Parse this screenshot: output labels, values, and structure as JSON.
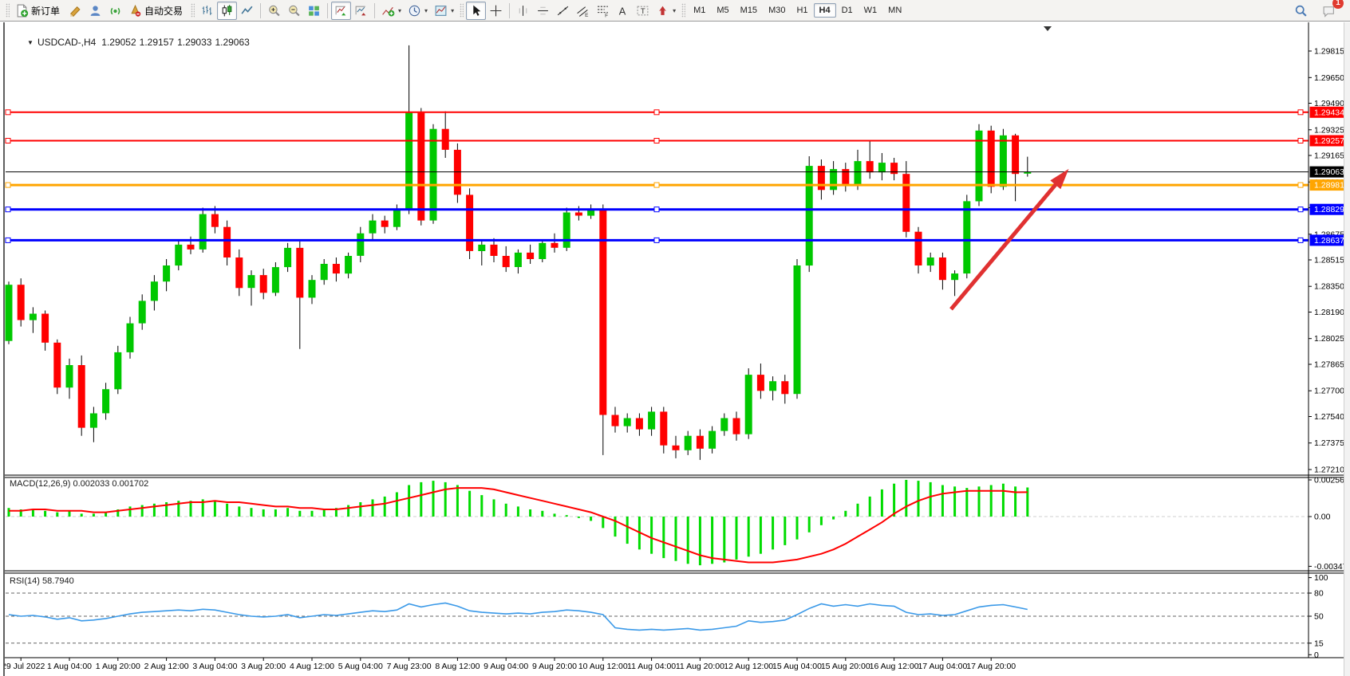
{
  "toolbar": {
    "new_order_label": "新订单",
    "auto_trading_label": "自动交易",
    "timeframes": [
      "M1",
      "M5",
      "M15",
      "M30",
      "H1",
      "H4",
      "D1",
      "W1",
      "MN"
    ],
    "active_timeframe": "H4",
    "notification_count": "1",
    "icons": [
      "new-order-icon",
      "mql5-crayon-icon",
      "virtual-hosting-icon",
      "signals-icon",
      "auto-trading-icon",
      "ohlc-bars-icon",
      "candlestick-icon",
      "line-chart-icon",
      "zoom-in-icon",
      "zoom-out-icon",
      "tile-windows-icon",
      "auto-scroll-icon",
      "chart-shift-icon",
      "indicators-icon",
      "periods-icon",
      "templates-icon",
      "cursor-icon",
      "crosshair-icon",
      "vertical-line-icon",
      "horizontal-line-icon",
      "trendline-icon",
      "equidistant-channel-icon",
      "fibonacci-icon",
      "text-icon",
      "text-label-icon",
      "arrows-icon",
      "search-icon",
      "chat-icon"
    ]
  },
  "chart": {
    "title_marker": "▼",
    "symbol_period": "USDCAD-,H4",
    "open": "1.29052",
    "high": "1.29157",
    "low": "1.29033",
    "close": "1.29063"
  },
  "indicators": {
    "macd_label": "MACD(12,26,9) 0.002033 0.001702",
    "rsi_label": "RSI(14) 58.7940"
  },
  "colors": {
    "candle_up": "#00C800",
    "candle_down": "#FF0000",
    "wick": "#000000",
    "macd_bar": "#00DC00",
    "macd_signal": "#FF0000",
    "rsi_line": "#3A99E8",
    "arrow": "#E03131",
    "level_red": "#FF0000",
    "level_orange": "#FFA500",
    "level_blue": "#0000FF",
    "bid_line": "#000000"
  },
  "chart_data": [
    {
      "type": "candlestick",
      "symbol": "USDCAD-",
      "timeframe": "H4",
      "ylim": [
        1.2721,
        1.29815
      ],
      "price_ticks": [
        "1.29815",
        "1.29650",
        "1.29490",
        "1.29325",
        "1.29165",
        "1.29000",
        "1.28840",
        "1.28675",
        "1.28515",
        "1.28350",
        "1.28190",
        "1.28025",
        "1.27865",
        "1.27700",
        "1.27540",
        "1.27375",
        "1.27210"
      ],
      "axis_badges": [
        {
          "label": "1.29434",
          "color": "#FF0000"
        },
        {
          "label": "1.29257",
          "color": "#FF0000"
        },
        {
          "label": "1.28981",
          "color": "#FFA500"
        },
        {
          "label": "1.28829",
          "color": "#0000FF"
        },
        {
          "label": "1.28637",
          "color": "#0000FF"
        },
        {
          "label": "1.29063",
          "color": "#000000"
        }
      ],
      "horizontal_lines": [
        {
          "price": 1.29434,
          "color": "#FF0000",
          "width": 2,
          "selected": true
        },
        {
          "price": 1.29257,
          "color": "#FF0000",
          "width": 2,
          "selected": true
        },
        {
          "price": 1.29063,
          "color": "#000000",
          "width": 1,
          "selected": false
        },
        {
          "price": 1.28981,
          "color": "#FFA500",
          "width": 3,
          "selected": true
        },
        {
          "price": 1.28829,
          "color": "#0000FF",
          "width": 3,
          "selected": true
        },
        {
          "price": 1.28637,
          "color": "#0000FF",
          "width": 3,
          "selected": true
        }
      ],
      "arrow_annotation": {
        "from": {
          "candle": 77.7,
          "price": 1.28208
        },
        "to": {
          "candle": 87.4,
          "price": 1.29081
        },
        "color": "#E03131"
      },
      "time_labels": [
        "29 Jul 2022",
        "1 Aug 04:00",
        "1 Aug 20:00",
        "2 Aug 12:00",
        "3 Aug 04:00",
        "3 Aug 20:00",
        "4 Aug 12:00",
        "5 Aug 04:00",
        "7 Aug 23:00",
        "8 Aug 12:00",
        "9 Aug 04:00",
        "9 Aug 20:00",
        "10 Aug 12:00",
        "11 Aug 04:00",
        "11 Aug 20:00",
        "12 Aug 12:00",
        "15 Aug 04:00",
        "15 Aug 20:00",
        "16 Aug 12:00",
        "17 Aug 04:00",
        "17 Aug 20:00"
      ],
      "candles_ohlc": [
        [
          1.2801,
          1.2838,
          1.2799,
          1.2836
        ],
        [
          1.2836,
          1.284,
          1.281,
          1.2814
        ],
        [
          1.2814,
          1.2822,
          1.2806,
          1.2818
        ],
        [
          1.2818,
          1.282,
          1.2795,
          1.28
        ],
        [
          1.28,
          1.2802,
          1.2768,
          1.2772
        ],
        [
          1.2772,
          1.279,
          1.2765,
          1.2786
        ],
        [
          1.2786,
          1.2792,
          1.2742,
          1.2747
        ],
        [
          1.2747,
          1.276,
          1.2738,
          1.2756
        ],
        [
          1.2756,
          1.2775,
          1.2752,
          1.2771
        ],
        [
          1.2771,
          1.2798,
          1.2768,
          1.2794
        ],
        [
          1.2794,
          1.2816,
          1.279,
          1.2812
        ],
        [
          1.2812,
          1.283,
          1.2808,
          1.2826
        ],
        [
          1.2826,
          1.2842,
          1.282,
          1.2838
        ],
        [
          1.2838,
          1.2852,
          1.2832,
          1.2848
        ],
        [
          1.2848,
          1.2864,
          1.2845,
          1.2861
        ],
        [
          1.2861,
          1.2866,
          1.2855,
          1.2858
        ],
        [
          1.2858,
          1.2884,
          1.2856,
          1.288
        ],
        [
          1.288,
          1.2885,
          1.2868,
          1.2872
        ],
        [
          1.2872,
          1.2876,
          1.2848,
          1.2853
        ],
        [
          1.2853,
          1.2858,
          1.2829,
          1.2834
        ],
        [
          1.2834,
          1.2845,
          1.2823,
          1.2842
        ],
        [
          1.2842,
          1.2846,
          1.2827,
          1.2831
        ],
        [
          1.2831,
          1.285,
          1.2829,
          1.2847
        ],
        [
          1.2847,
          1.2862,
          1.2844,
          1.2859
        ],
        [
          1.2859,
          1.2863,
          1.2796,
          1.2828
        ],
        [
          1.2828,
          1.2842,
          1.2824,
          1.2839
        ],
        [
          1.2839,
          1.2852,
          1.2836,
          1.2849
        ],
        [
          1.2849,
          1.2853,
          1.2838,
          1.2843
        ],
        [
          1.2843,
          1.2856,
          1.284,
          1.2854
        ],
        [
          1.2854,
          1.2872,
          1.285,
          1.2868
        ],
        [
          1.2868,
          1.288,
          1.2864,
          1.2876
        ],
        [
          1.2876,
          1.2879,
          1.2868,
          1.2872
        ],
        [
          1.2872,
          1.2886,
          1.287,
          1.2883
        ],
        [
          1.2883,
          1.2985,
          1.288,
          1.2943
        ],
        [
          1.2943,
          1.2946,
          1.2873,
          1.2876
        ],
        [
          1.2876,
          1.2936,
          1.2874,
          1.2933
        ],
        [
          1.2933,
          1.2944,
          1.2915,
          1.292
        ],
        [
          1.292,
          1.2924,
          1.2887,
          1.2892
        ],
        [
          1.2892,
          1.2896,
          1.2852,
          1.2857
        ],
        [
          1.2857,
          1.2864,
          1.2848,
          1.2861
        ],
        [
          1.2861,
          1.2865,
          1.285,
          1.2854
        ],
        [
          1.2854,
          1.286,
          1.2844,
          1.2847
        ],
        [
          1.2847,
          1.2858,
          1.2843,
          1.2856
        ],
        [
          1.2856,
          1.2861,
          1.2849,
          1.2852
        ],
        [
          1.2852,
          1.2864,
          1.285,
          1.2862
        ],
        [
          1.2862,
          1.2868,
          1.2856,
          1.2859
        ],
        [
          1.2859,
          1.2884,
          1.2857,
          1.2881
        ],
        [
          1.2881,
          1.2885,
          1.2876,
          1.2879
        ],
        [
          1.2879,
          1.2886,
          1.2877,
          1.2883
        ],
        [
          1.2883,
          1.2886,
          1.273,
          1.2755
        ],
        [
          1.2755,
          1.276,
          1.2744,
          1.2748
        ],
        [
          1.2748,
          1.2756,
          1.2744,
          1.2753
        ],
        [
          1.2753,
          1.2756,
          1.2742,
          1.2746
        ],
        [
          1.2746,
          1.276,
          1.2742,
          1.2757
        ],
        [
          1.2757,
          1.276,
          1.2731,
          1.2736
        ],
        [
          1.2736,
          1.2742,
          1.2728,
          1.2733
        ],
        [
          1.2733,
          1.2745,
          1.273,
          1.2742
        ],
        [
          1.2742,
          1.2746,
          1.2727,
          1.2734
        ],
        [
          1.2734,
          1.2748,
          1.2731,
          1.2745
        ],
        [
          1.2745,
          1.2756,
          1.2742,
          1.2753
        ],
        [
          1.2753,
          1.2757,
          1.2739,
          1.2743
        ],
        [
          1.2743,
          1.2784,
          1.274,
          1.278
        ],
        [
          1.278,
          1.2787,
          1.2765,
          1.277
        ],
        [
          1.277,
          1.2779,
          1.2764,
          1.2776
        ],
        [
          1.2776,
          1.278,
          1.2762,
          1.2768
        ],
        [
          1.2768,
          1.2852,
          1.2765,
          1.2848
        ],
        [
          1.2848,
          1.2916,
          1.2844,
          1.291
        ],
        [
          1.291,
          1.2914,
          1.2889,
          1.2895
        ],
        [
          1.2895,
          1.2913,
          1.2892,
          1.2908
        ],
        [
          1.2908,
          1.2912,
          1.2894,
          1.2898
        ],
        [
          1.2898,
          1.292,
          1.2895,
          1.2913
        ],
        [
          1.2913,
          1.29255,
          1.2902,
          1.2906
        ],
        [
          1.2906,
          1.2918,
          1.2901,
          1.2912
        ],
        [
          1.2912,
          1.2915,
          1.2901,
          1.2905
        ],
        [
          1.2905,
          1.2913,
          1.28655,
          1.2869
        ],
        [
          1.2869,
          1.2872,
          1.2843,
          1.2848
        ],
        [
          1.2848,
          1.2856,
          1.2844,
          1.2853
        ],
        [
          1.2853,
          1.2856,
          1.2833,
          1.2839
        ],
        [
          1.2839,
          1.2845,
          1.2829,
          1.2843
        ],
        [
          1.2843,
          1.2892,
          1.284,
          1.2888
        ],
        [
          1.2888,
          1.2936,
          1.2885,
          1.2932
        ],
        [
          1.2932,
          1.2935,
          1.2893,
          1.2897
        ],
        [
          1.2897,
          1.2933,
          1.2895,
          1.2929
        ],
        [
          1.2929,
          1.293,
          1.2888,
          1.2905
        ],
        [
          1.29052,
          1.29157,
          1.29033,
          1.29063
        ]
      ]
    },
    {
      "type": "bar",
      "name": "MACD(12,26,9)",
      "current_macd": "0.002033",
      "current_signal": "0.001702",
      "axis_ticks": [
        "0.002561",
        "0.00",
        "-0.003477"
      ],
      "histogram": [
        0.0006,
        0.0005,
        0.0005,
        0.0004,
        0.0003,
        0.0004,
        0.0002,
        0.0002,
        0.0003,
        0.0005,
        0.0007,
        0.0008,
        0.0009,
        0.001,
        0.0011,
        0.0011,
        0.0012,
        0.0011,
        0.0009,
        0.0007,
        0.0006,
        0.0005,
        0.0005,
        0.0006,
        0.0004,
        0.0004,
        0.0005,
        0.0006,
        0.0008,
        0.001,
        0.0012,
        0.0014,
        0.0017,
        0.0022,
        0.0024,
        0.0025,
        0.0024,
        0.0022,
        0.0018,
        0.0015,
        0.0012,
        0.0009,
        0.0007,
        0.0005,
        0.0004,
        0.0002,
        0.0001,
        -0.0001,
        -0.0003,
        -0.0008,
        -0.0014,
        -0.0019,
        -0.0023,
        -0.0026,
        -0.0029,
        -0.0031,
        -0.0033,
        -0.0034,
        -0.0033,
        -0.0032,
        -0.003,
        -0.0028,
        -0.0026,
        -0.0023,
        -0.002,
        -0.0016,
        -0.0011,
        -0.0006,
        -0.0002,
        0.0004,
        0.0009,
        0.0014,
        0.0019,
        0.0023,
        0.00256,
        0.0025,
        0.0024,
        0.0022,
        0.0021,
        0.002,
        0.0021,
        0.0022,
        0.0023,
        0.0021,
        0.002033
      ],
      "signal": [
        0.0004,
        0.0004,
        0.0005,
        0.0005,
        0.0004,
        0.0004,
        0.0004,
        0.0003,
        0.0003,
        0.0004,
        0.0005,
        0.0006,
        0.0007,
        0.0008,
        0.0009,
        0.001,
        0.001,
        0.0011,
        0.001,
        0.001,
        0.0009,
        0.0008,
        0.0007,
        0.0007,
        0.0006,
        0.0006,
        0.0005,
        0.0005,
        0.0006,
        0.0007,
        0.0008,
        0.0009,
        0.0011,
        0.0013,
        0.0015,
        0.0017,
        0.0019,
        0.002,
        0.002,
        0.002,
        0.0019,
        0.0017,
        0.0015,
        0.0013,
        0.0011,
        0.0009,
        0.0007,
        0.0005,
        0.0003,
        0.0,
        -0.0003,
        -0.0007,
        -0.0011,
        -0.0015,
        -0.0018,
        -0.0021,
        -0.0024,
        -0.0027,
        -0.0029,
        -0.003,
        -0.0031,
        -0.0032,
        -0.0032,
        -0.0032,
        -0.0031,
        -0.003,
        -0.0028,
        -0.0026,
        -0.0023,
        -0.0019,
        -0.0014,
        -0.0009,
        -0.0004,
        0.0002,
        0.0007,
        0.0011,
        0.0014,
        0.0016,
        0.0017,
        0.0018,
        0.0018,
        0.0018,
        0.0018,
        0.0017,
        0.001702
      ]
    },
    {
      "type": "line",
      "name": "RSI(14)",
      "current_value": "58.7940",
      "axis_ticks": [
        "100",
        "80",
        "50",
        "15",
        "0"
      ],
      "dashed_levels": [
        80,
        50,
        15
      ],
      "values": [
        52,
        50,
        51,
        49,
        46,
        48,
        44,
        45,
        47,
        50,
        53,
        55,
        56,
        57,
        58,
        57,
        59,
        58,
        55,
        52,
        50,
        49,
        50,
        52,
        48,
        50,
        52,
        51,
        53,
        55,
        57,
        56,
        58,
        66,
        62,
        65,
        67,
        63,
        57,
        55,
        54,
        53,
        54,
        53,
        55,
        56,
        58,
        57,
        55,
        52,
        35,
        33,
        32,
        33,
        32,
        33,
        34,
        32,
        33,
        35,
        37,
        44,
        42,
        43,
        45,
        52,
        60,
        66,
        63,
        65,
        63,
        66,
        64,
        63,
        55,
        52,
        53,
        51,
        52,
        57,
        62,
        64,
        65,
        62,
        58.79
      ]
    }
  ]
}
